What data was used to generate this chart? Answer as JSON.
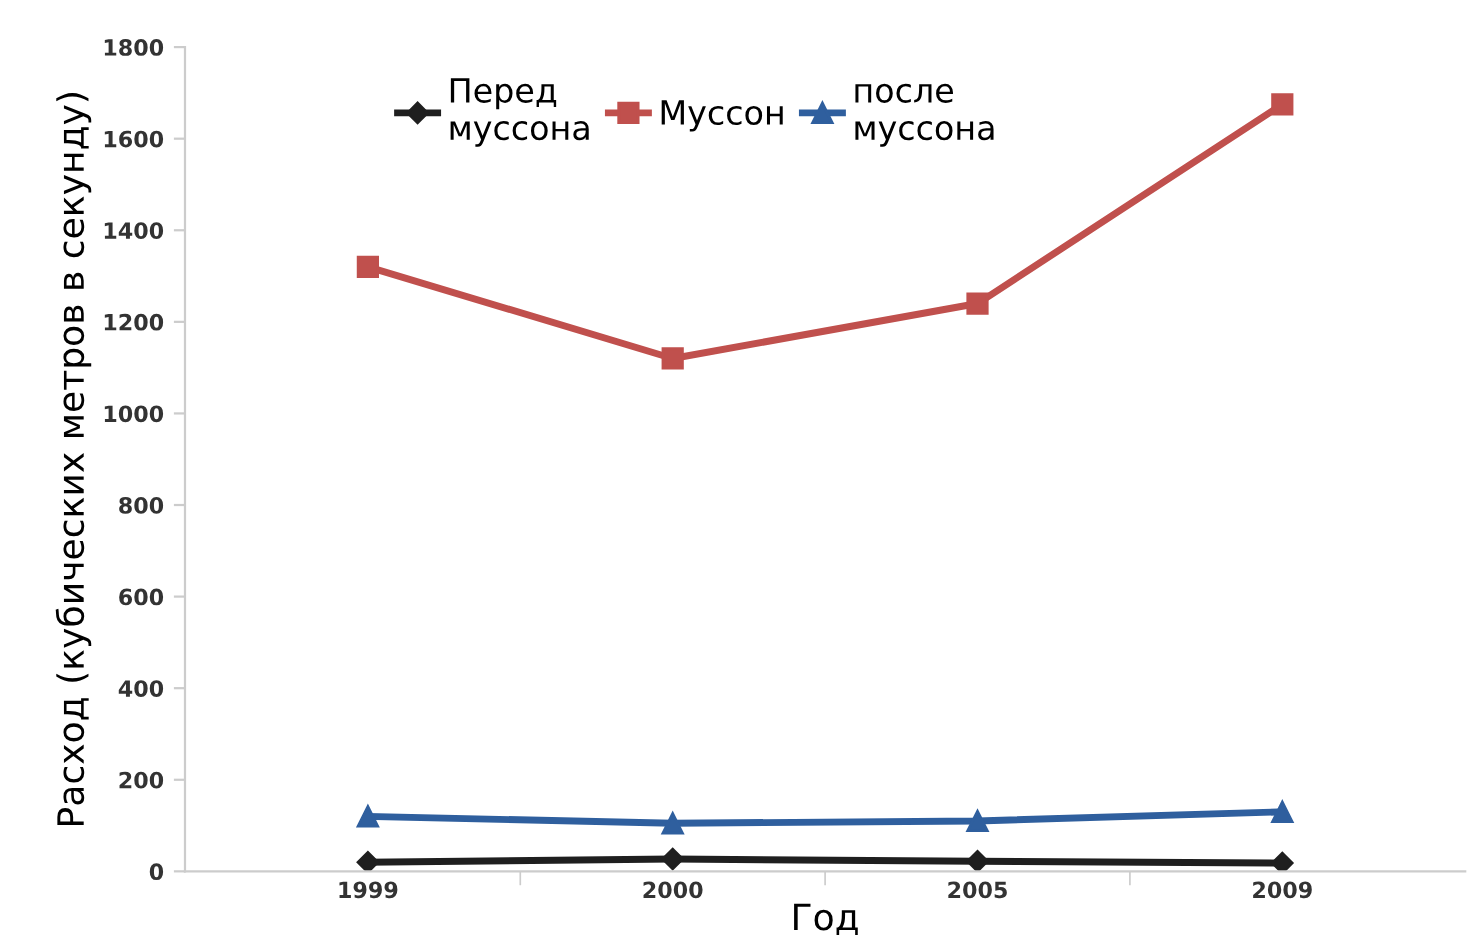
{
  "chart_data": {
    "type": "line",
    "xlabel": "Год",
    "ylabel": "Расход (кубических метров в секунду)",
    "categories": [
      "1999",
      "2000",
      "2005",
      "2009"
    ],
    "series": [
      {
        "name": "Перед\nмуссона",
        "color": "#1f1f1f",
        "values": [
          20,
          27,
          22,
          18
        ],
        "marker": "diamond"
      },
      {
        "name": "Муссон",
        "color": "#c0504d",
        "values": [
          1320,
          1120,
          1240,
          1675
        ],
        "marker": "square"
      },
      {
        "name": "после\nмуссона",
        "color": "#2f5f9e",
        "values": [
          120,
          105,
          110,
          130
        ],
        "marker": "triangle"
      }
    ],
    "ylim": [
      0,
      1800
    ],
    "yticks": [
      0,
      200,
      400,
      600,
      800,
      1000,
      1200,
      1400,
      1600,
      1800
    ],
    "grid": false,
    "legend": "top"
  }
}
